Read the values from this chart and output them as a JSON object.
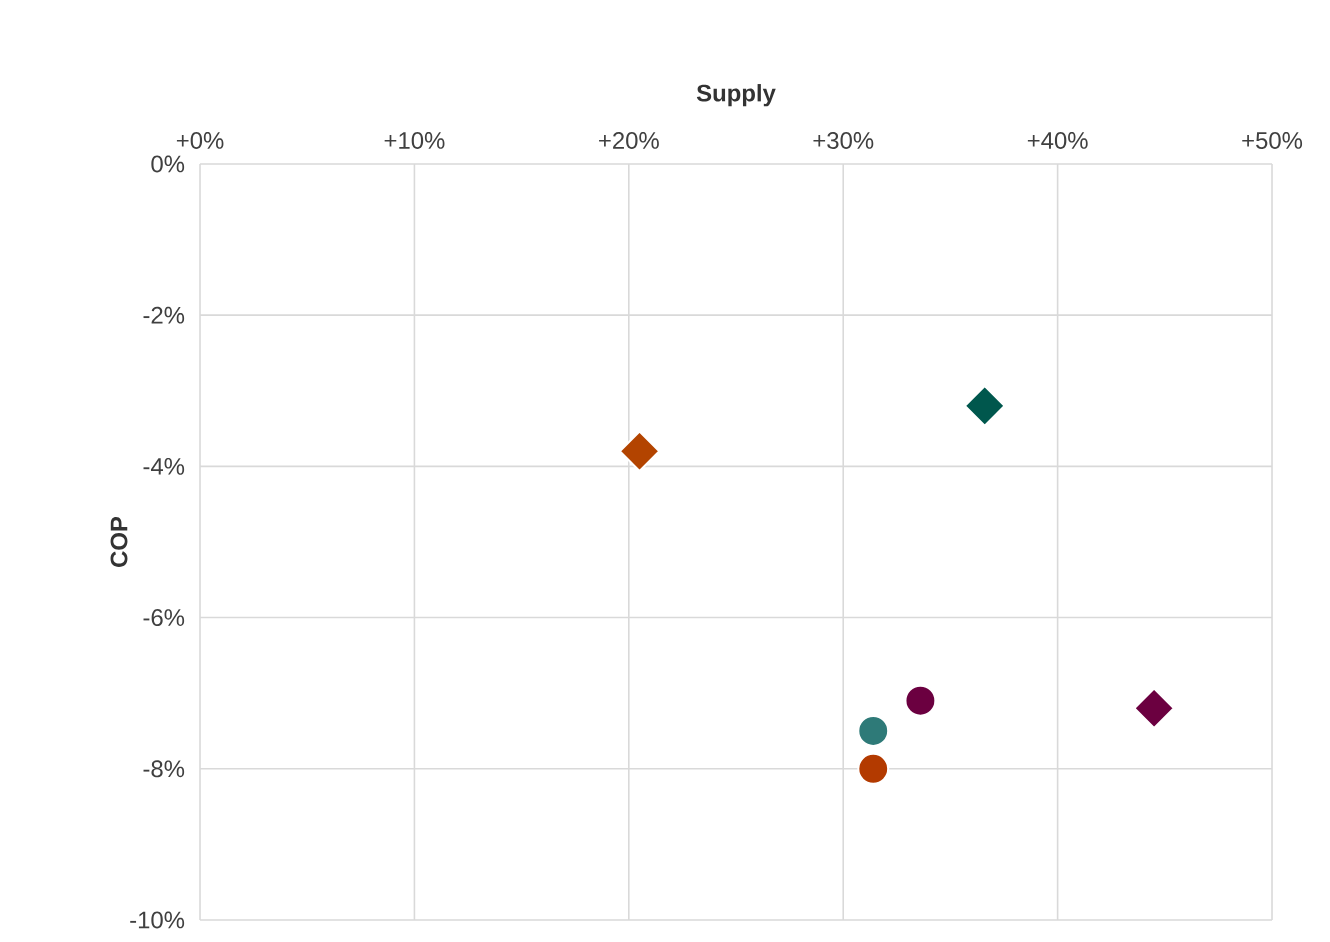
{
  "chart_data": {
    "type": "scatter",
    "xlabel": "Supply",
    "ylabel": "COP",
    "xlim": [
      0,
      50
    ],
    "ylim": [
      -10,
      0
    ],
    "xticks": [
      {
        "value": 0,
        "label": "+0%"
      },
      {
        "value": 10,
        "label": "+10%"
      },
      {
        "value": 20,
        "label": "+20%"
      },
      {
        "value": 30,
        "label": "+30%"
      },
      {
        "value": 40,
        "label": "+40%"
      },
      {
        "value": 50,
        "label": "+50%"
      }
    ],
    "yticks": [
      {
        "value": 0,
        "label": "0%"
      },
      {
        "value": -2,
        "label": "-2%"
      },
      {
        "value": -4,
        "label": "-4%"
      },
      {
        "value": -6,
        "label": "-6%"
      },
      {
        "value": -8,
        "label": "-8%"
      },
      {
        "value": -10,
        "label": "-10%"
      }
    ],
    "grid": true,
    "series": [
      {
        "color": "#b34400",
        "marker": "diamond",
        "x": [
          20.5
        ],
        "values": [
          -3.8
        ]
      },
      {
        "color": "#00574d",
        "marker": "diamond",
        "x": [
          36.6
        ],
        "values": [
          -3.2
        ]
      },
      {
        "color": "#6b0040",
        "marker": "diamond",
        "x": [
          44.5
        ],
        "values": [
          -7.2
        ]
      },
      {
        "color": "#6b0040",
        "marker": "circle",
        "x": [
          33.6
        ],
        "values": [
          -7.1
        ]
      },
      {
        "color": "#2e7a78",
        "marker": "circle",
        "x": [
          31.4
        ],
        "values": [
          -7.5
        ]
      },
      {
        "color": "#b33a00",
        "marker": "circle",
        "x": [
          31.4
        ],
        "values": [
          -8.0
        ]
      }
    ]
  }
}
